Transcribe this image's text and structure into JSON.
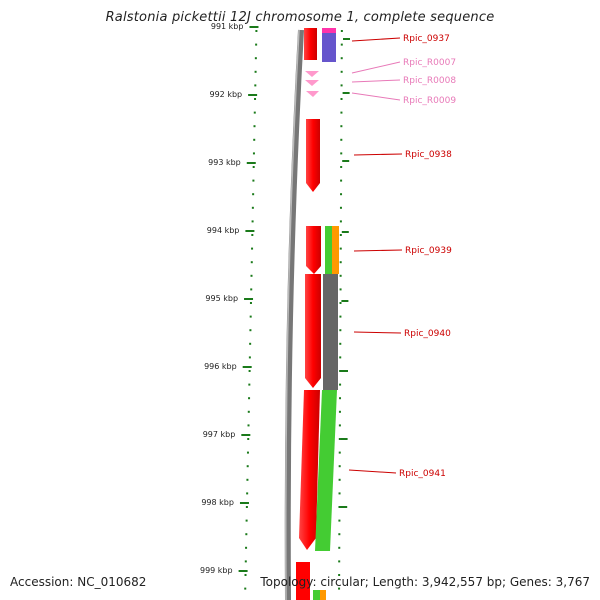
{
  "title": "Ralstonia pickettii 12J chromosome 1, complete sequence",
  "accession": "Accession: NC_010682",
  "summary": "Topology: circular; Length: 3,942,557 bp; Genes: 3,767",
  "ruler": {
    "ticks": [
      "991 kbp",
      "992 kbp",
      "993 kbp",
      "994 kbp",
      "995 kbp",
      "996 kbp",
      "997 kbp",
      "998 kbp",
      "999 kbp"
    ]
  },
  "genes": [
    {
      "name": "Rpic_0937",
      "color": "#cc0000"
    },
    {
      "name": "Rpic_R0007",
      "color": "#e879b8"
    },
    {
      "name": "Rpic_R0008",
      "color": "#e879b8"
    },
    {
      "name": "Rpic_R0009",
      "color": "#e879b8"
    },
    {
      "name": "Rpic_0938",
      "color": "#cc0000"
    },
    {
      "name": "Rpic_0939",
      "color": "#cc0000"
    },
    {
      "name": "Rpic_0940",
      "color": "#cc0000"
    },
    {
      "name": "Rpic_0941",
      "color": "#cc0000"
    }
  ],
  "colors": {
    "cds": "#ff0000",
    "rna": "#ff99cc",
    "tick": "#1a7a1a",
    "backbone": "#808080",
    "cog_purple": "#6655cc",
    "cog_magenta": "#ff33aa",
    "cog_green": "#44cc33",
    "cog_orange": "#ff9900",
    "cog_gray": "#666666"
  }
}
